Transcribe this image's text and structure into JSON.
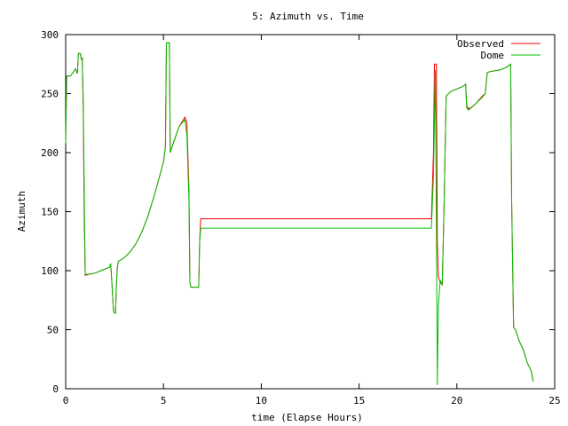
{
  "chart_data": {
    "type": "line",
    "title": "5: Azimuth vs. Time",
    "xlabel": "time (Elapse Hours)",
    "ylabel": "Azimuth",
    "xlim": [
      0,
      25
    ],
    "ylim": [
      0,
      300
    ],
    "xticks": [
      0,
      5,
      10,
      15,
      20,
      25
    ],
    "yticks": [
      0,
      50,
      100,
      150,
      200,
      250,
      300
    ],
    "grid": false,
    "legend_position": "top-right",
    "series": [
      {
        "name": "Observed",
        "color": "#ff0000",
        "points": [
          [
            0,
            208
          ],
          [
            0.05,
            265
          ],
          [
            0.25,
            265
          ],
          [
            0.5,
            271
          ],
          [
            0.6,
            267
          ],
          [
            0.65,
            284
          ],
          [
            0.75,
            284
          ],
          [
            0.8,
            279
          ],
          [
            0.85,
            280
          ],
          [
            0.9,
            235
          ],
          [
            0.95,
            145
          ],
          [
            1.0,
            96
          ],
          [
            1.2,
            97
          ],
          [
            1.5,
            98
          ],
          [
            1.8,
            100
          ],
          [
            2.1,
            102
          ],
          [
            2.25,
            103
          ],
          [
            2.3,
            106
          ],
          [
            2.35,
            93
          ],
          [
            2.45,
            65
          ],
          [
            2.55,
            64
          ],
          [
            2.6,
            91
          ],
          [
            2.65,
            104
          ],
          [
            2.7,
            108
          ],
          [
            3.0,
            111
          ],
          [
            3.3,
            116
          ],
          [
            3.6,
            123
          ],
          [
            3.9,
            133
          ],
          [
            4.2,
            146
          ],
          [
            4.5,
            162
          ],
          [
            4.8,
            180
          ],
          [
            5.0,
            192
          ],
          [
            5.1,
            205
          ],
          [
            5.15,
            293
          ],
          [
            5.3,
            293
          ],
          [
            5.35,
            200
          ],
          [
            5.5,
            208
          ],
          [
            5.8,
            222
          ],
          [
            6.1,
            230
          ],
          [
            6.2,
            225
          ],
          [
            6.3,
            170
          ],
          [
            6.35,
            90
          ],
          [
            6.4,
            86
          ],
          [
            6.8,
            86
          ],
          [
            6.85,
            126
          ],
          [
            6.9,
            144
          ],
          [
            18.7,
            144
          ],
          [
            18.8,
            200
          ],
          [
            18.85,
            275
          ],
          [
            18.95,
            275
          ],
          [
            19.0,
            125
          ],
          [
            19.05,
            95
          ],
          [
            19.15,
            90
          ],
          [
            19.25,
            88
          ],
          [
            19.35,
            160
          ],
          [
            19.45,
            248
          ],
          [
            19.7,
            252
          ],
          [
            20.0,
            254
          ],
          [
            20.3,
            256
          ],
          [
            20.45,
            258
          ],
          [
            20.5,
            240
          ],
          [
            20.6,
            237
          ],
          [
            20.8,
            239
          ],
          [
            21.0,
            242
          ],
          [
            21.3,
            248
          ],
          [
            21.45,
            250
          ],
          [
            21.55,
            268
          ],
          [
            21.8,
            269
          ],
          [
            22.2,
            270
          ],
          [
            22.5,
            272
          ],
          [
            22.75,
            275
          ],
          [
            22.8,
            160
          ],
          [
            22.9,
            52
          ],
          [
            23.0,
            50
          ],
          [
            23.2,
            40
          ],
          [
            23.4,
            33
          ],
          [
            23.6,
            22
          ],
          [
            23.8,
            15
          ],
          [
            23.9,
            6
          ]
        ]
      },
      {
        "name": "Dome",
        "color": "#00c000",
        "points": [
          [
            0,
            208
          ],
          [
            0.05,
            265
          ],
          [
            0.25,
            265
          ],
          [
            0.5,
            271
          ],
          [
            0.6,
            267
          ],
          [
            0.65,
            284
          ],
          [
            0.75,
            284
          ],
          [
            0.8,
            279
          ],
          [
            0.85,
            280
          ],
          [
            0.9,
            245
          ],
          [
            0.95,
            170
          ],
          [
            1.0,
            97
          ],
          [
            1.2,
            97
          ],
          [
            1.5,
            98
          ],
          [
            1.8,
            100
          ],
          [
            2.1,
            102
          ],
          [
            2.25,
            103
          ],
          [
            2.3,
            106
          ],
          [
            2.35,
            93
          ],
          [
            2.45,
            65
          ],
          [
            2.55,
            64
          ],
          [
            2.6,
            91
          ],
          [
            2.65,
            104
          ],
          [
            2.7,
            108
          ],
          [
            3.0,
            111
          ],
          [
            3.3,
            116
          ],
          [
            3.6,
            123
          ],
          [
            3.9,
            133
          ],
          [
            4.2,
            146
          ],
          [
            4.5,
            162
          ],
          [
            4.8,
            180
          ],
          [
            5.0,
            192
          ],
          [
            5.1,
            205
          ],
          [
            5.15,
            293
          ],
          [
            5.3,
            293
          ],
          [
            5.35,
            200
          ],
          [
            5.5,
            208
          ],
          [
            5.8,
            222
          ],
          [
            6.1,
            228
          ],
          [
            6.2,
            215
          ],
          [
            6.3,
            160
          ],
          [
            6.35,
            90
          ],
          [
            6.4,
            86
          ],
          [
            6.8,
            86
          ],
          [
            6.85,
            124
          ],
          [
            6.9,
            136
          ],
          [
            18.7,
            136
          ],
          [
            18.8,
            180
          ],
          [
            18.9,
            270
          ],
          [
            19.0,
            3
          ],
          [
            19.05,
            70
          ],
          [
            19.15,
            92
          ],
          [
            19.25,
            88
          ],
          [
            19.35,
            160
          ],
          [
            19.45,
            248
          ],
          [
            19.7,
            252
          ],
          [
            20.0,
            254
          ],
          [
            20.3,
            256
          ],
          [
            20.45,
            258
          ],
          [
            20.5,
            238
          ],
          [
            20.6,
            236
          ],
          [
            20.8,
            239
          ],
          [
            21.0,
            242
          ],
          [
            21.3,
            247
          ],
          [
            21.45,
            250
          ],
          [
            21.55,
            268
          ],
          [
            21.8,
            269
          ],
          [
            22.2,
            270
          ],
          [
            22.5,
            272
          ],
          [
            22.75,
            275
          ],
          [
            22.8,
            160
          ],
          [
            22.9,
            52
          ],
          [
            23.0,
            50
          ],
          [
            23.2,
            40
          ],
          [
            23.4,
            33
          ],
          [
            23.6,
            22
          ],
          [
            23.8,
            15
          ],
          [
            23.9,
            6
          ]
        ]
      }
    ]
  }
}
